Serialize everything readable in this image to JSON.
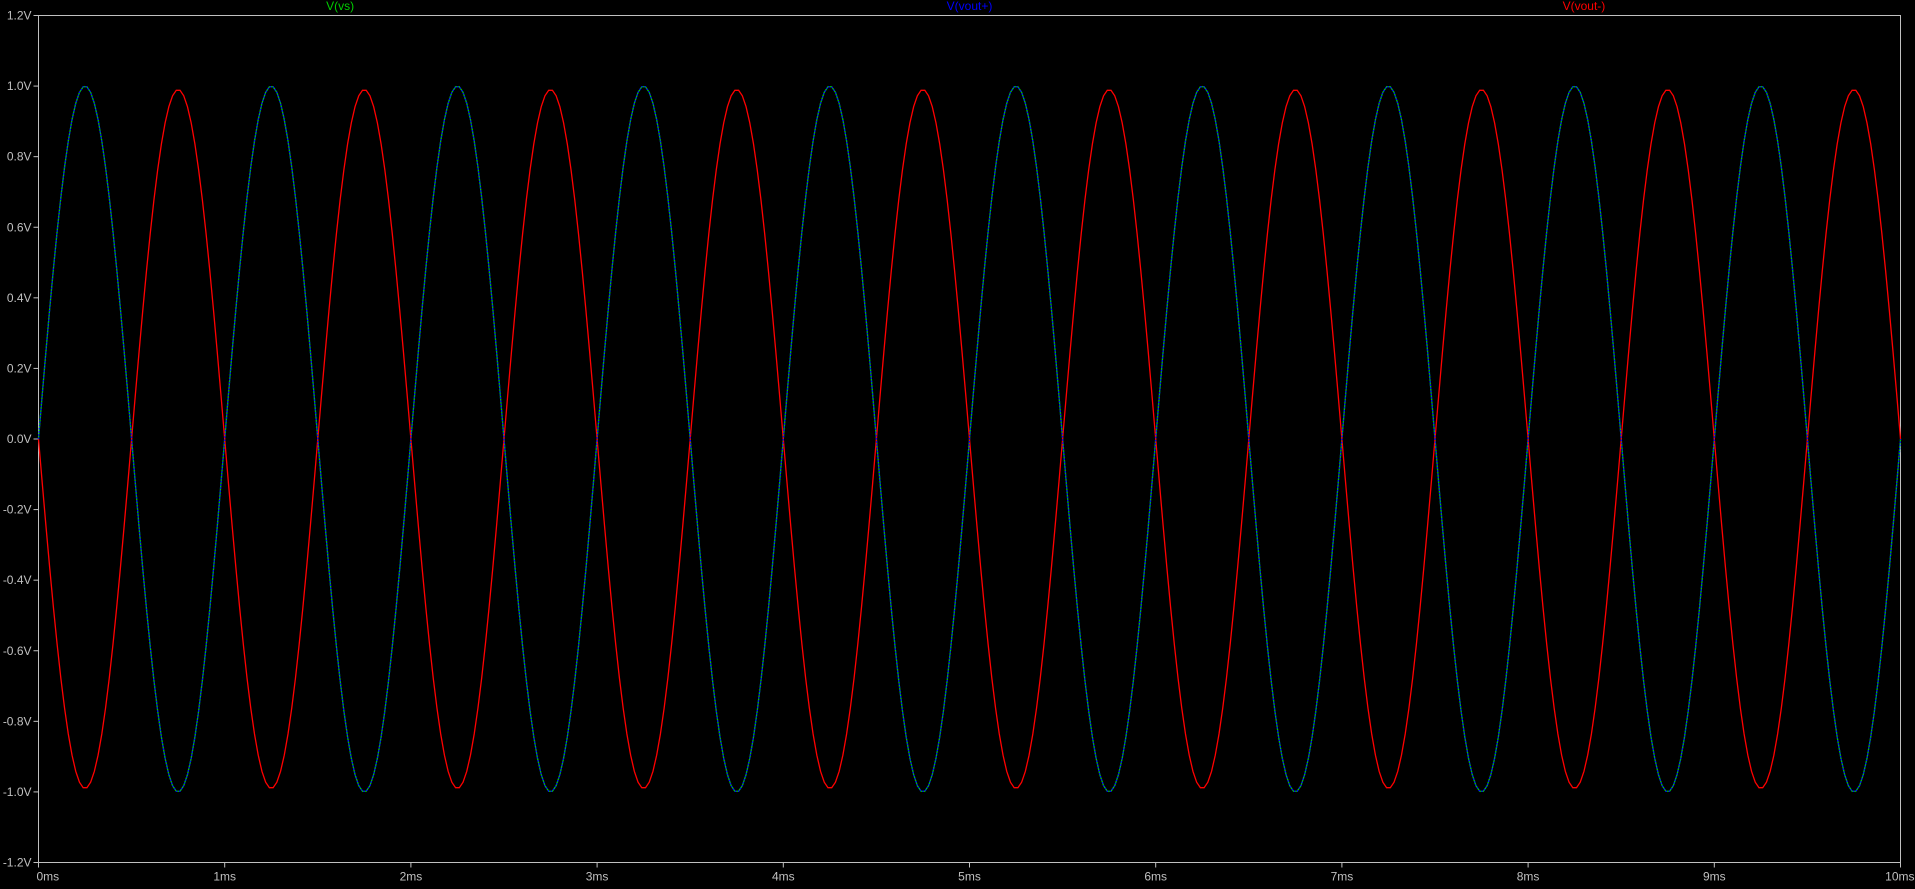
{
  "chart_data": {
    "type": "line",
    "title": "",
    "xlabel": "",
    "ylabel": "",
    "xlim": [
      0,
      10
    ],
    "ylim": [
      -1.2,
      1.2
    ],
    "grid": false,
    "legend": "top",
    "x_unit": "ms",
    "x_ticks": [
      "0ms",
      "1ms",
      "2ms",
      "3ms",
      "4ms",
      "5ms",
      "6ms",
      "7ms",
      "8ms",
      "9ms",
      "10ms"
    ],
    "y_ticks": [
      "1.2V",
      "1.0V",
      "0.8V",
      "0.6V",
      "0.4V",
      "0.2V",
      "0.0V",
      "-0.2V",
      "-0.4V",
      "-0.6V",
      "-0.8V",
      "-1.0V",
      "-1.2V"
    ],
    "x_samples_step_ms": 0.02,
    "series": [
      {
        "name": "V(vs)",
        "color": "#00cc00",
        "amplitude": 1.0,
        "frequency_khz": 1.0,
        "phase_deg": 0,
        "style": "solid"
      },
      {
        "name": "V(vout+)",
        "color": "#0000ff",
        "amplitude": 1.0,
        "frequency_khz": 1.0,
        "phase_deg": 0,
        "style": "dotted"
      },
      {
        "name": "V(vout-)",
        "color": "#ff0000",
        "amplitude": 0.99,
        "frequency_khz": 1.0,
        "phase_deg": 180,
        "style": "solid"
      }
    ],
    "colors": {
      "background": "#000000",
      "frame": "#c0c0c0",
      "tick_label": "#c0c0c0"
    }
  }
}
